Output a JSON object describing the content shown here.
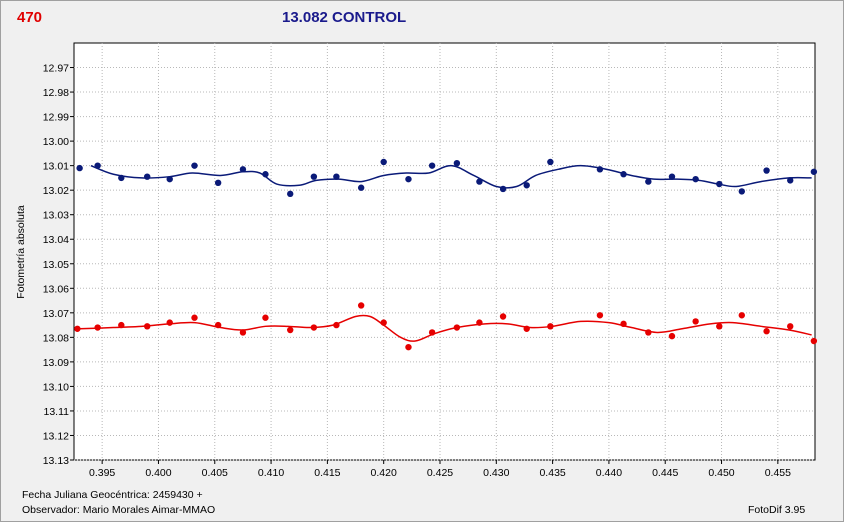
{
  "header": {
    "star_id": "470",
    "title": "13.082 CONTROL"
  },
  "footer": {
    "date_line": "Fecha Juliana Geocéntrica: 2459430 +",
    "observer_line": "Observador: Mario Morales Aimar-MMAO",
    "software": "FotoDif 3.95"
  },
  "colors": {
    "series_blue": "#0a1a78",
    "series_red": "#e60000",
    "background": "#ffffff"
  },
  "chart_data": {
    "type": "scatter",
    "title": "13.082 CONTROL",
    "xlabel": "",
    "ylabel": "Fotometría absoluta",
    "xlim": [
      0.3925,
      0.4583
    ],
    "ylim": [
      12.96,
      13.13
    ],
    "y_inverted": true,
    "grid": true,
    "x_ticks": [
      "0.395",
      "0.400",
      "0.405",
      "0.410",
      "0.415",
      "0.420",
      "0.425",
      "0.430",
      "0.435",
      "0.440",
      "0.445",
      "0.450",
      "0.455"
    ],
    "x_tick_values": [
      0.395,
      0.4,
      0.405,
      0.41,
      0.415,
      0.42,
      0.425,
      0.43,
      0.435,
      0.44,
      0.445,
      0.45,
      0.455
    ],
    "y_ticks": [
      "12.97",
      "12.98",
      "12.99",
      "13.00",
      "13.01",
      "13.02",
      "13.03",
      "13.04",
      "13.05",
      "13.06",
      "13.07",
      "13.08",
      "13.09",
      "13.10",
      "13.11",
      "13.12",
      "13.13"
    ],
    "y_tick_values": [
      12.97,
      12.98,
      12.99,
      13.0,
      13.01,
      13.02,
      13.03,
      13.04,
      13.05,
      13.06,
      13.07,
      13.08,
      13.09,
      13.1,
      13.11,
      13.12,
      13.13
    ],
    "series": [
      {
        "color": "#0a1a78",
        "points": [
          [
            0.393,
            13.011
          ],
          [
            0.3946,
            13.01
          ],
          [
            0.3967,
            13.015
          ],
          [
            0.399,
            13.0145
          ],
          [
            0.401,
            13.0155
          ],
          [
            0.4032,
            13.01
          ],
          [
            0.4053,
            13.017
          ],
          [
            0.4075,
            13.0115
          ],
          [
            0.4095,
            13.0135
          ],
          [
            0.4117,
            13.0215
          ],
          [
            0.4138,
            13.0145
          ],
          [
            0.4158,
            13.0145
          ],
          [
            0.418,
            13.019
          ],
          [
            0.42,
            13.0085
          ],
          [
            0.4222,
            13.0155
          ],
          [
            0.4243,
            13.01
          ],
          [
            0.4265,
            13.009
          ],
          [
            0.4285,
            13.0165
          ],
          [
            0.4306,
            13.0195
          ],
          [
            0.4327,
            13.018
          ],
          [
            0.4348,
            13.0085
          ],
          [
            0.4392,
            13.0115
          ],
          [
            0.4413,
            13.0135
          ],
          [
            0.4435,
            13.0165
          ],
          [
            0.4456,
            13.0145
          ],
          [
            0.4477,
            13.0155
          ],
          [
            0.4498,
            13.0175
          ],
          [
            0.4518,
            13.0205
          ],
          [
            0.454,
            13.012
          ],
          [
            0.4561,
            13.016
          ],
          [
            0.4582,
            13.0125
          ]
        ],
        "trend": [
          [
            0.394,
            13.01
          ],
          [
            0.396,
            13.0135
          ],
          [
            0.3985,
            13.015
          ],
          [
            0.401,
            13.0145
          ],
          [
            0.403,
            13.013
          ],
          [
            0.4055,
            13.014
          ],
          [
            0.4075,
            13.0125
          ],
          [
            0.409,
            13.013
          ],
          [
            0.4105,
            13.0175
          ],
          [
            0.4125,
            13.018
          ],
          [
            0.414,
            13.016
          ],
          [
            0.416,
            13.0155
          ],
          [
            0.418,
            13.0165
          ],
          [
            0.42,
            13.014
          ],
          [
            0.422,
            13.013
          ],
          [
            0.424,
            13.013
          ],
          [
            0.426,
            13.01
          ],
          [
            0.428,
            13.014
          ],
          [
            0.43,
            13.0185
          ],
          [
            0.4318,
            13.0185
          ],
          [
            0.4335,
            13.014
          ],
          [
            0.4355,
            13.0115
          ],
          [
            0.4375,
            13.01
          ],
          [
            0.4398,
            13.0115
          ],
          [
            0.442,
            13.014
          ],
          [
            0.444,
            13.0155
          ],
          [
            0.446,
            13.0155
          ],
          [
            0.448,
            13.016
          ],
          [
            0.4497,
            13.0175
          ],
          [
            0.4513,
            13.0185
          ],
          [
            0.4535,
            13.0165
          ],
          [
            0.456,
            13.015
          ],
          [
            0.458,
            13.015
          ]
        ]
      },
      {
        "color": "#e60000",
        "points": [
          [
            0.3928,
            13.0765
          ],
          [
            0.3946,
            13.076
          ],
          [
            0.3967,
            13.075
          ],
          [
            0.399,
            13.0755
          ],
          [
            0.401,
            13.074
          ],
          [
            0.4032,
            13.072
          ],
          [
            0.4053,
            13.075
          ],
          [
            0.4075,
            13.078
          ],
          [
            0.4095,
            13.072
          ],
          [
            0.4117,
            13.077
          ],
          [
            0.4138,
            13.076
          ],
          [
            0.4158,
            13.075
          ],
          [
            0.418,
            13.067
          ],
          [
            0.42,
            13.074
          ],
          [
            0.4222,
            13.084
          ],
          [
            0.4243,
            13.078
          ],
          [
            0.4265,
            13.076
          ],
          [
            0.4285,
            13.074
          ],
          [
            0.4306,
            13.0715
          ],
          [
            0.4327,
            13.0765
          ],
          [
            0.4348,
            13.0755
          ],
          [
            0.4392,
            13.071
          ],
          [
            0.4413,
            13.0745
          ],
          [
            0.4435,
            13.078
          ],
          [
            0.4456,
            13.0795
          ],
          [
            0.4477,
            13.0735
          ],
          [
            0.4498,
            13.0755
          ],
          [
            0.4518,
            13.071
          ],
          [
            0.454,
            13.0775
          ],
          [
            0.4561,
            13.0755
          ],
          [
            0.4582,
            13.0815
          ]
        ],
        "trend": [
          [
            0.393,
            13.0765
          ],
          [
            0.396,
            13.076
          ],
          [
            0.3985,
            13.0755
          ],
          [
            0.401,
            13.0745
          ],
          [
            0.4032,
            13.074
          ],
          [
            0.4055,
            13.076
          ],
          [
            0.4075,
            13.077
          ],
          [
            0.4095,
            13.0755
          ],
          [
            0.4115,
            13.0755
          ],
          [
            0.4135,
            13.076
          ],
          [
            0.4155,
            13.075
          ],
          [
            0.4175,
            13.0715
          ],
          [
            0.4188,
            13.0715
          ],
          [
            0.42,
            13.075
          ],
          [
            0.4215,
            13.08
          ],
          [
            0.4228,
            13.0815
          ],
          [
            0.4245,
            13.0785
          ],
          [
            0.4265,
            13.076
          ],
          [
            0.429,
            13.0745
          ],
          [
            0.431,
            13.0745
          ],
          [
            0.433,
            13.076
          ],
          [
            0.435,
            13.0755
          ],
          [
            0.4375,
            13.0735
          ],
          [
            0.44,
            13.074
          ],
          [
            0.442,
            13.076
          ],
          [
            0.4443,
            13.078
          ],
          [
            0.4465,
            13.0765
          ],
          [
            0.449,
            13.0745
          ],
          [
            0.451,
            13.074
          ],
          [
            0.4535,
            13.0755
          ],
          [
            0.456,
            13.077
          ],
          [
            0.458,
            13.079
          ]
        ]
      }
    ]
  }
}
